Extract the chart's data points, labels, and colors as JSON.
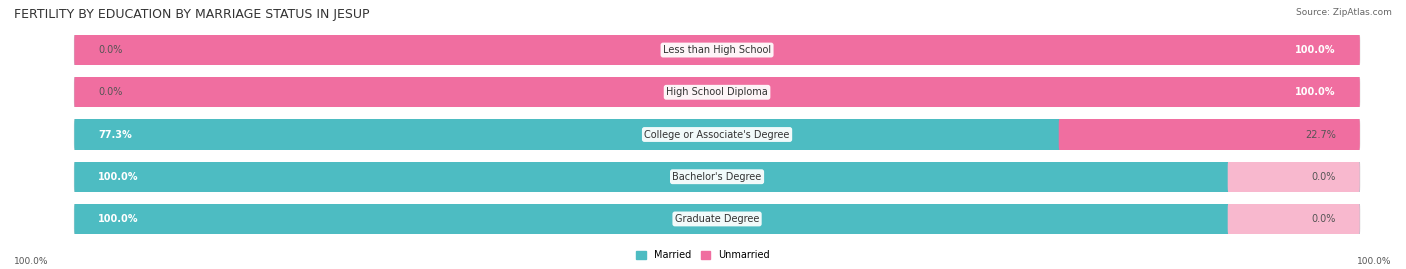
{
  "title": "FERTILITY BY EDUCATION BY MARRIAGE STATUS IN JESUP",
  "source": "Source: ZipAtlas.com",
  "categories": [
    "Less than High School",
    "High School Diploma",
    "College or Associate's Degree",
    "Bachelor's Degree",
    "Graduate Degree"
  ],
  "married": [
    0.0,
    0.0,
    77.3,
    100.0,
    100.0
  ],
  "unmarried": [
    100.0,
    100.0,
    22.7,
    0.0,
    0.0
  ],
  "married_color": "#4DBCC2",
  "unmarried_color": "#F06EA0",
  "married_light": "#A8D8DC",
  "unmarried_light": "#F8B8CE",
  "bar_bg_color": "#E8E8E8",
  "title_fontsize": 9,
  "label_fontsize": 7,
  "tick_fontsize": 6.5,
  "source_fontsize": 6.5,
  "figsize": [
    14.06,
    2.69
  ],
  "dpi": 100
}
